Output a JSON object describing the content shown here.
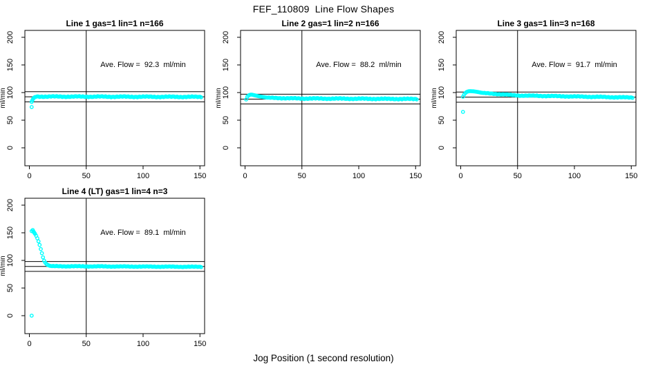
{
  "page": {
    "title": "FEF_110809  Line Flow Shapes",
    "xlabel": "Jog Position (1 second resolution)",
    "background": "#ffffff",
    "axis_color": "#000000"
  },
  "chart_data": [
    {
      "type": "scatter",
      "title": "Line 1 gas=1 lin=1 n=166",
      "annotation": "Ave. Flow =  92.3  ml/min",
      "ylabel": "ml/min",
      "x_ticks": [
        0,
        50,
        100,
        150
      ],
      "y_ticks": [
        0,
        50,
        100,
        150,
        200
      ],
      "xlim": [
        -4,
        154.5
      ],
      "ylim": [
        -32.5,
        212.5
      ],
      "mean": 92.3,
      "upper_limit": 101.5,
      "lower_limit": 83.1,
      "vline_x": 50,
      "point_color": "#00ffff",
      "grid": false,
      "points": [
        [
          2,
          73.8
        ],
        [
          2,
          83
        ],
        [
          2.5,
          85.5
        ],
        [
          3,
          87.5
        ],
        [
          3.5,
          89.2
        ],
        [
          4,
          90.5
        ],
        [
          4.5,
          91.4
        ],
        [
          5,
          92
        ],
        [
          6,
          92.4
        ]
      ],
      "runs": [
        {
          "from": 7,
          "to": 151,
          "step": 1,
          "y0": 92.8,
          "y1": 92.2,
          "amp": 1.0
        }
      ]
    },
    {
      "type": "scatter",
      "title": "Line 2 gas=1 lin=2 n=166",
      "annotation": "Ave. Flow =  88.2  ml/min",
      "ylabel": "ml/min",
      "x_ticks": [
        0,
        50,
        100,
        150
      ],
      "y_ticks": [
        0,
        50,
        100,
        150,
        200
      ],
      "xlim": [
        -4,
        154.5
      ],
      "ylim": [
        -32.5,
        212.5
      ],
      "mean": 88.2,
      "upper_limit": 97.0,
      "lower_limit": 79.4,
      "vline_x": 50,
      "point_color": "#00ffff",
      "grid": false,
      "points": [
        [
          1,
          87.5
        ],
        [
          2,
          92.5
        ],
        [
          3,
          94.5
        ],
        [
          4,
          95.7
        ],
        [
          5,
          96.3
        ],
        [
          6,
          96.2
        ],
        [
          7,
          95.8
        ],
        [
          8,
          95.3
        ],
        [
          9,
          94.8
        ],
        [
          10,
          94.3
        ],
        [
          11,
          93.8
        ],
        [
          12,
          93.4
        ],
        [
          13,
          93
        ],
        [
          14,
          92.6
        ],
        [
          15,
          92.2
        ],
        [
          16,
          91.9
        ],
        [
          17,
          91.6
        ],
        [
          18,
          91.3
        ],
        [
          19,
          91
        ],
        [
          20,
          90.7
        ]
      ],
      "runs": [
        {
          "from": 21,
          "to": 40,
          "step": 1,
          "y0": 90.5,
          "y1": 89.5,
          "amp": 0.8
        },
        {
          "from": 41,
          "to": 151,
          "step": 1,
          "y0": 89.4,
          "y1": 88.3,
          "amp": 1.0
        }
      ]
    },
    {
      "type": "scatter",
      "title": "Line 3 gas=1 lin=3 n=168",
      "annotation": "Ave. Flow =  91.7  ml/min",
      "ylabel": "ml/min",
      "x_ticks": [
        0,
        50,
        100,
        150
      ],
      "y_ticks": [
        0,
        50,
        100,
        150,
        200
      ],
      "xlim": [
        -4,
        154.5
      ],
      "ylim": [
        -32.5,
        212.5
      ],
      "mean": 91.7,
      "upper_limit": 100.9,
      "lower_limit": 82.5,
      "vline_x": 50,
      "point_color": "#00ffff",
      "grid": false,
      "points": [
        [
          2,
          65
        ],
        [
          2,
          92.5
        ],
        [
          3,
          96.5
        ],
        [
          4,
          99
        ],
        [
          5,
          100.8
        ],
        [
          6,
          101.8
        ],
        [
          7,
          102.3
        ],
        [
          8,
          102.5
        ],
        [
          9,
          102.5
        ],
        [
          10,
          102.4
        ],
        [
          11,
          102.2
        ],
        [
          12,
          102
        ],
        [
          13,
          101.7
        ],
        [
          14,
          101.4
        ],
        [
          15,
          101
        ],
        [
          16,
          100.6
        ],
        [
          17,
          100.2
        ],
        [
          18,
          99.8
        ],
        [
          19,
          99.5
        ],
        [
          20,
          99.2
        ]
      ],
      "runs": [
        {
          "from": 21,
          "to": 50,
          "step": 1,
          "y0": 98.9,
          "y1": 94.8,
          "amp": 0.7
        },
        {
          "from": 51,
          "to": 151,
          "step": 1,
          "y0": 94.7,
          "y1": 91.0,
          "amp": 0.9
        }
      ]
    },
    {
      "type": "scatter",
      "title": "Line 4 (LT) gas=1 lin=4 n=3",
      "annotation": "Ave. Flow =  89.1  ml/min",
      "ylabel": "ml/min",
      "x_ticks": [
        0,
        50,
        100,
        150
      ],
      "y_ticks": [
        0,
        50,
        100,
        150,
        200
      ],
      "xlim": [
        -4,
        154.5
      ],
      "ylim": [
        -32.5,
        212.5
      ],
      "mean": 89.1,
      "upper_limit": 98.0,
      "lower_limit": 80.2,
      "vline_x": 50,
      "point_color": "#00ffff",
      "grid": false,
      "points": [
        [
          2,
          0
        ],
        [
          2,
          153
        ],
        [
          3,
          155
        ],
        [
          3.5,
          152.5
        ],
        [
          4,
          151
        ],
        [
          4.5,
          149.5
        ],
        [
          5,
          148
        ],
        [
          6,
          144.5
        ],
        [
          7,
          140
        ],
        [
          8,
          134.5
        ],
        [
          9,
          128
        ],
        [
          10,
          120.5
        ],
        [
          11,
          113
        ],
        [
          12,
          105.5
        ],
        [
          13,
          99.5
        ],
        [
          14,
          96
        ],
        [
          15,
          93.5
        ],
        [
          16,
          92
        ],
        [
          17,
          91
        ],
        [
          18,
          90.3
        ],
        [
          19,
          89.9
        ],
        [
          20,
          89.6
        ]
      ],
      "runs": [
        {
          "from": 21,
          "to": 151,
          "step": 1,
          "y0": 89.5,
          "y1": 88.4,
          "amp": 0.7
        }
      ]
    }
  ]
}
